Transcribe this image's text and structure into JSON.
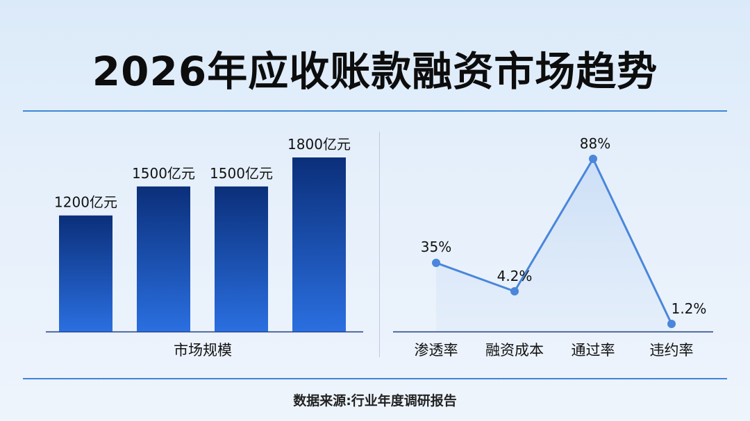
{
  "title": "2026年应收账款融资市场趋势",
  "footer": "数据来源:行业年度调研报告",
  "colors": {
    "bar_top": "#0b2f7a",
    "bar_bottom": "#2a6fe0",
    "line": "#4a86db",
    "rule": "#3d86d6"
  },
  "chart_data": [
    {
      "type": "bar",
      "xlabel": "市场规模",
      "values": [
        1200,
        1500,
        1500,
        1800
      ],
      "data_labels": [
        "1200亿元",
        "1500亿元",
        "1500亿元",
        "1800亿元"
      ]
    },
    {
      "type": "line",
      "categories": [
        "渗透率",
        "融资成本",
        "通过率",
        "违约率"
      ],
      "values": [
        35,
        4.2,
        88,
        1.2
      ],
      "data_labels": [
        "35%",
        "4.2%",
        "88%",
        "1.2%"
      ]
    }
  ]
}
